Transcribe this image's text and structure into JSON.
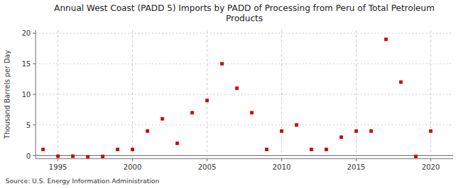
{
  "chart_data": {
    "type": "scatter",
    "title": "Annual West Coast (PADD 5) Imports by PADD of Processing from Peru of Total Petroleum\nProducts",
    "y_label": "Thousand Barrels per Day",
    "source": "Source: U.S. Energy Information Administration",
    "x": [
      1994,
      1995,
      1996,
      1997,
      1998,
      1999,
      2000,
      2001,
      2002,
      2003,
      2004,
      2005,
      2006,
      2007,
      2008,
      2009,
      2010,
      2011,
      2012,
      2013,
      2014,
      2015,
      2016,
      2017,
      2018,
      2019,
      2020
    ],
    "values": [
      1,
      -0.1,
      -0.1,
      -0.2,
      -0.15,
      1,
      1,
      4,
      6,
      2,
      7,
      9,
      15,
      11,
      7,
      1,
      4,
      5,
      1,
      1,
      3,
      4,
      4,
      19,
      12,
      -0.15,
      4
    ],
    "color": "#cc0000",
    "marker": "square",
    "xlim": [
      1993.5,
      2021.5
    ],
    "ylim": [
      -0.5,
      20.5
    ],
    "xticks": [
      1995,
      2000,
      2005,
      2010,
      2015,
      2020
    ],
    "yticks": [
      0,
      5,
      10,
      15,
      20
    ],
    "grid": true
  }
}
